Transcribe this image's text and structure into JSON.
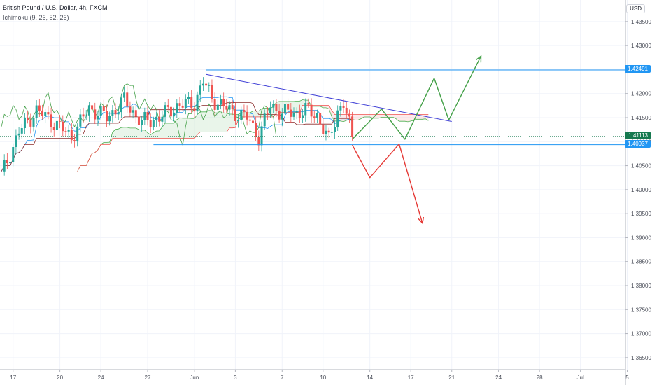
{
  "header": {
    "symbol": "British Pound / U.S. Dollar, 4h, FXCM",
    "indicator": "Ichimoku (9, 26, 52, 26)",
    "currency": "USD"
  },
  "colors": {
    "up": "#26a69a",
    "down": "#ef5350",
    "tenkan": "#2196f3",
    "kijun": "#8b2b2b",
    "chikou": "#43a047",
    "senkou_a": "#4caf50",
    "senkou_b": "#ef5350",
    "hline": "#2196f3",
    "trendline": "#3f3fd6",
    "bull_path": "#43a047",
    "bear_path": "#e53935",
    "last_price": "#16794f"
  },
  "chart_data": {
    "type": "candlestick",
    "instrument": "GBPUSD",
    "timeframe": "4h",
    "ylim": [
      1.3625,
      1.4395
    ],
    "y_ticks": [
      "1.43500",
      "1.43000",
      "1.42500",
      "1.42000",
      "1.41500",
      "1.41000",
      "1.40500",
      "1.40000",
      "1.39500",
      "1.39000",
      "1.38500",
      "1.38000",
      "1.37500",
      "1.37000",
      "1.36500"
    ],
    "x_ticks": [
      "17",
      "20",
      "24",
      "27",
      "Jun",
      "3",
      "7",
      "10",
      "14",
      "17",
      "21",
      "24",
      "28",
      "Jul",
      "5"
    ],
    "x_tick_index": [
      4,
      20,
      34,
      50,
      66,
      80,
      96,
      110,
      126,
      140,
      154,
      170,
      184,
      198,
      214
    ],
    "last_price": {
      "label": "1.41113",
      "value": 1.41113
    },
    "levels": [
      {
        "label": "1.42491",
        "value": 1.42491,
        "from": 70
      },
      {
        "label": "1.40937",
        "value": 1.40937,
        "from": 52
      }
    ],
    "trendline": {
      "from": [
        70,
        1.424
      ],
      "to": [
        154,
        1.4142
      ]
    },
    "bull_path": [
      [
        120,
        1.4105
      ],
      [
        130,
        1.4168
      ],
      [
        138,
        1.4105
      ],
      [
        148,
        1.4232
      ],
      [
        153,
        1.4145
      ],
      [
        164,
        1.4278
      ]
    ],
    "bear_path": [
      [
        120,
        1.4093
      ],
      [
        126,
        1.4025
      ],
      [
        136,
        1.4095
      ],
      [
        144,
        1.393
      ]
    ],
    "ohlc_anchor": [
      [
        0,
        1.403
      ],
      [
        6,
        1.412
      ],
      [
        12,
        1.4165
      ],
      [
        18,
        1.414
      ],
      [
        24,
        1.411
      ],
      [
        30,
        1.417
      ],
      [
        36,
        1.415
      ],
      [
        42,
        1.4185
      ],
      [
        48,
        1.414
      ],
      [
        54,
        1.415
      ],
      [
        60,
        1.4175
      ],
      [
        66,
        1.418
      ],
      [
        69,
        1.4225
      ],
      [
        72,
        1.419
      ],
      [
        78,
        1.4165
      ],
      [
        84,
        1.415
      ],
      [
        88,
        1.411
      ],
      [
        92,
        1.4175
      ],
      [
        96,
        1.416
      ],
      [
        100,
        1.416
      ],
      [
        104,
        1.4165
      ],
      [
        108,
        1.4155
      ],
      [
        112,
        1.41
      ],
      [
        115,
        1.4165
      ],
      [
        117,
        1.418
      ],
      [
        120,
        1.411
      ]
    ]
  }
}
